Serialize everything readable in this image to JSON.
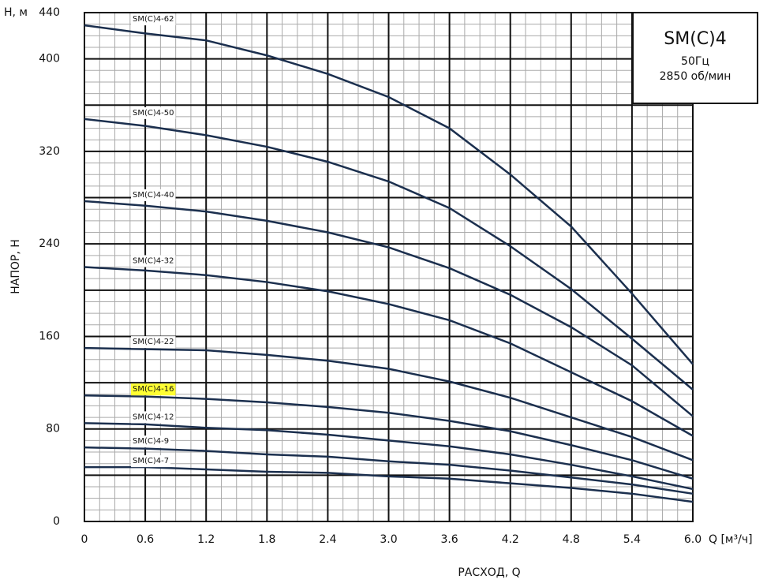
{
  "chart_data": {
    "type": "line",
    "y_axis_unit": "Н, м",
    "y_label": "НАПОР, Н",
    "x_label": "РАСХОД, Q",
    "x_axis_unit": "Q [м³/ч]",
    "box_title": "SM(C)4",
    "box_lines": [
      "50Гц",
      "2850 об/мин"
    ],
    "x": [
      0,
      0.6,
      1.2,
      1.8,
      2.4,
      3.0,
      3.6,
      4.2,
      4.8,
      5.4,
      6.0
    ],
    "xlim": [
      0,
      6.0
    ],
    "xticks": [
      0,
      0.6,
      1.2,
      1.8,
      2.4,
      {
        "value": 3.0,
        "label": "3.0"
      },
      3.6,
      4.2,
      4.8,
      5.4,
      {
        "value": 6.0,
        "label": "6.0"
      }
    ],
    "ylim": [
      0,
      440
    ],
    "yticks": [
      0,
      80,
      160,
      240,
      320,
      400,
      440
    ],
    "grid": true,
    "highlight_color": "#ffff33",
    "series": [
      {
        "name": "SM(C)4-62",
        "color": "#1b2f4e",
        "values": [
          429,
          422,
          416,
          403,
          387,
          367,
          340,
          300,
          255,
          197,
          136
        ]
      },
      {
        "name": "SM(C)4-50",
        "color": "#1b2f4e",
        "values": [
          348,
          342,
          334,
          324,
          311,
          294,
          271,
          238,
          201,
          158,
          114
        ]
      },
      {
        "name": "SM(C)4-40",
        "color": "#1b2f4e",
        "values": [
          277,
          273,
          268,
          260,
          250,
          237,
          219,
          196,
          168,
          135,
          91
        ]
      },
      {
        "name": "SM(C)4-32",
        "color": "#1b2f4e",
        "values": [
          220,
          217,
          213,
          207,
          199,
          188,
          174,
          154,
          129,
          104,
          74
        ]
      },
      {
        "name": "SM(C)4-22",
        "color": "#1b2f4e",
        "values": [
          150,
          149,
          148,
          144,
          139,
          132,
          121,
          107,
          90,
          73,
          53
        ]
      },
      {
        "name": "SM(C)4-16",
        "color": "#1b2f4e",
        "highlight": true,
        "values": [
          109,
          108,
          106,
          103,
          99,
          94,
          87,
          78,
          66,
          53,
          37
        ]
      },
      {
        "name": "SM(C)4-12",
        "color": "#1b2f4e",
        "values": [
          85,
          84,
          81,
          79,
          75,
          70,
          65,
          58,
          49,
          39,
          28
        ]
      },
      {
        "name": "SM(C)4-9",
        "color": "#1b2f4e",
        "values": [
          64,
          63,
          61,
          58,
          56,
          52,
          49,
          44,
          38,
          32,
          24
        ]
      },
      {
        "name": "SM(C)4-7",
        "color": "#1b2f4e",
        "values": [
          47,
          47,
          45,
          43,
          42,
          39,
          37,
          33,
          29,
          24,
          17
        ]
      }
    ]
  }
}
